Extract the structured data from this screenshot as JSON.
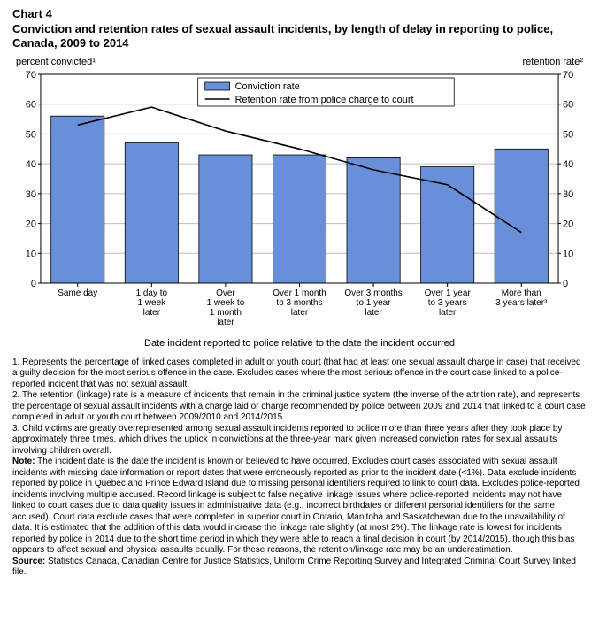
{
  "chart": {
    "type": "bar+line",
    "label": "Chart 4",
    "title": "Conviction and retention rates of sexual assault incidents, by length of delay in reporting to police, Canada, 2009 to 2014",
    "left_axis_label": "percent convicted¹",
    "right_axis_label": "retention rate²",
    "x_axis_title": "Date incident reported to police relative to the date the incident occurred",
    "ylim": [
      0,
      70
    ],
    "ytick_step": 10,
    "tick_fontsize": 11,
    "categories": [
      "Same day",
      "1 day to\n1 week\nlater",
      "Over\n1 week to\n1 month\nlater",
      "Over 1 month\nto 3 months\nlater",
      "Over 3 months\nto 1 year\nlater",
      "Over 1 year\nto 3 years\nlater",
      "More than\n3 years later³"
    ],
    "bar_series": {
      "name": "Conviction rate",
      "values": [
        56,
        47,
        43,
        43,
        42,
        39,
        45
      ],
      "color": "#6a8fd9",
      "border_color": "#000000",
      "bar_width_ratio": 0.72
    },
    "line_series": {
      "name": "Retention rate from police charge to court",
      "values": [
        53,
        59,
        51,
        45,
        38,
        33,
        17
      ],
      "color": "#000000",
      "stroke_width": 1.6
    },
    "plot_border_color": "#000000",
    "grid_color": "#bfbfbf",
    "background_color": "#ffffff",
    "legend_box_border": "#000000",
    "legend_position": "top-center"
  },
  "notes": {
    "n1": "1. Represents the percentage of linked cases completed in adult or youth court (that had at least one sexual assault charge in case) that received a guilty decision for the most serious offence in the case. Excludes cases where the most serious offence in the court case linked to a police-reported incident that was not sexual assault.",
    "n2": "2. The retention (linkage) rate is a measure of incidents that remain in the criminal justice system (the inverse of the attrition rate), and represents the percentage of sexual assault incidents with a charge laid or charge recommended by police between 2009 and 2014 that linked to a court case completed in adult or youth court between 2009/2010 and 2014/2015.",
    "n3": "3. Child victims are greatly overrepresented among sexual assault incidents reported to police more than three years after they took place by approximately three times, which drives the uptick in convictions at the three-year mark given increased conviction rates for sexual assaults involving children overall.",
    "note_label": "Note:",
    "note_body": " The incident date is the date the incident is known or believed to have occurred. Excludes court cases associated with sexual assault incidents with missing date information or report dates that were erroneously reported as prior to the incident date (<1%). Data exclude incidents reported by police in Quebec and Prince Edward Island due to missing personal identifiers required to link to court data. Excludes police-reported incidents involving multiple accused. Record linkage is subject to false negative linkage issues where police-reported incidents may not have linked to court cases due to data quality issues in administrative data (e.g., incorrect birthdates or different personal identifiers for the same accused). Court data exclude cases that were completed in superior court in Ontario, Manitoba and Saskatchewan due to the unavailability of data. It is estimated that the addition of this data would increase the linkage rate slightly (at most 2%). The linkage rate is lowest for incidents reported by police in 2014 due to the short time period in which they were able to reach a final decision in court (by 2014/2015), though this bias appears to affect sexual and physical assaults equally. For these reasons, the retention/linkage rate may be an underestimation.",
    "source_label": "Source:",
    "source_body": " Statistics Canada, Canadian Centre for Justice Statistics, Uniform Crime Reporting Survey and Integrated Criminal Court Survey linked file."
  }
}
